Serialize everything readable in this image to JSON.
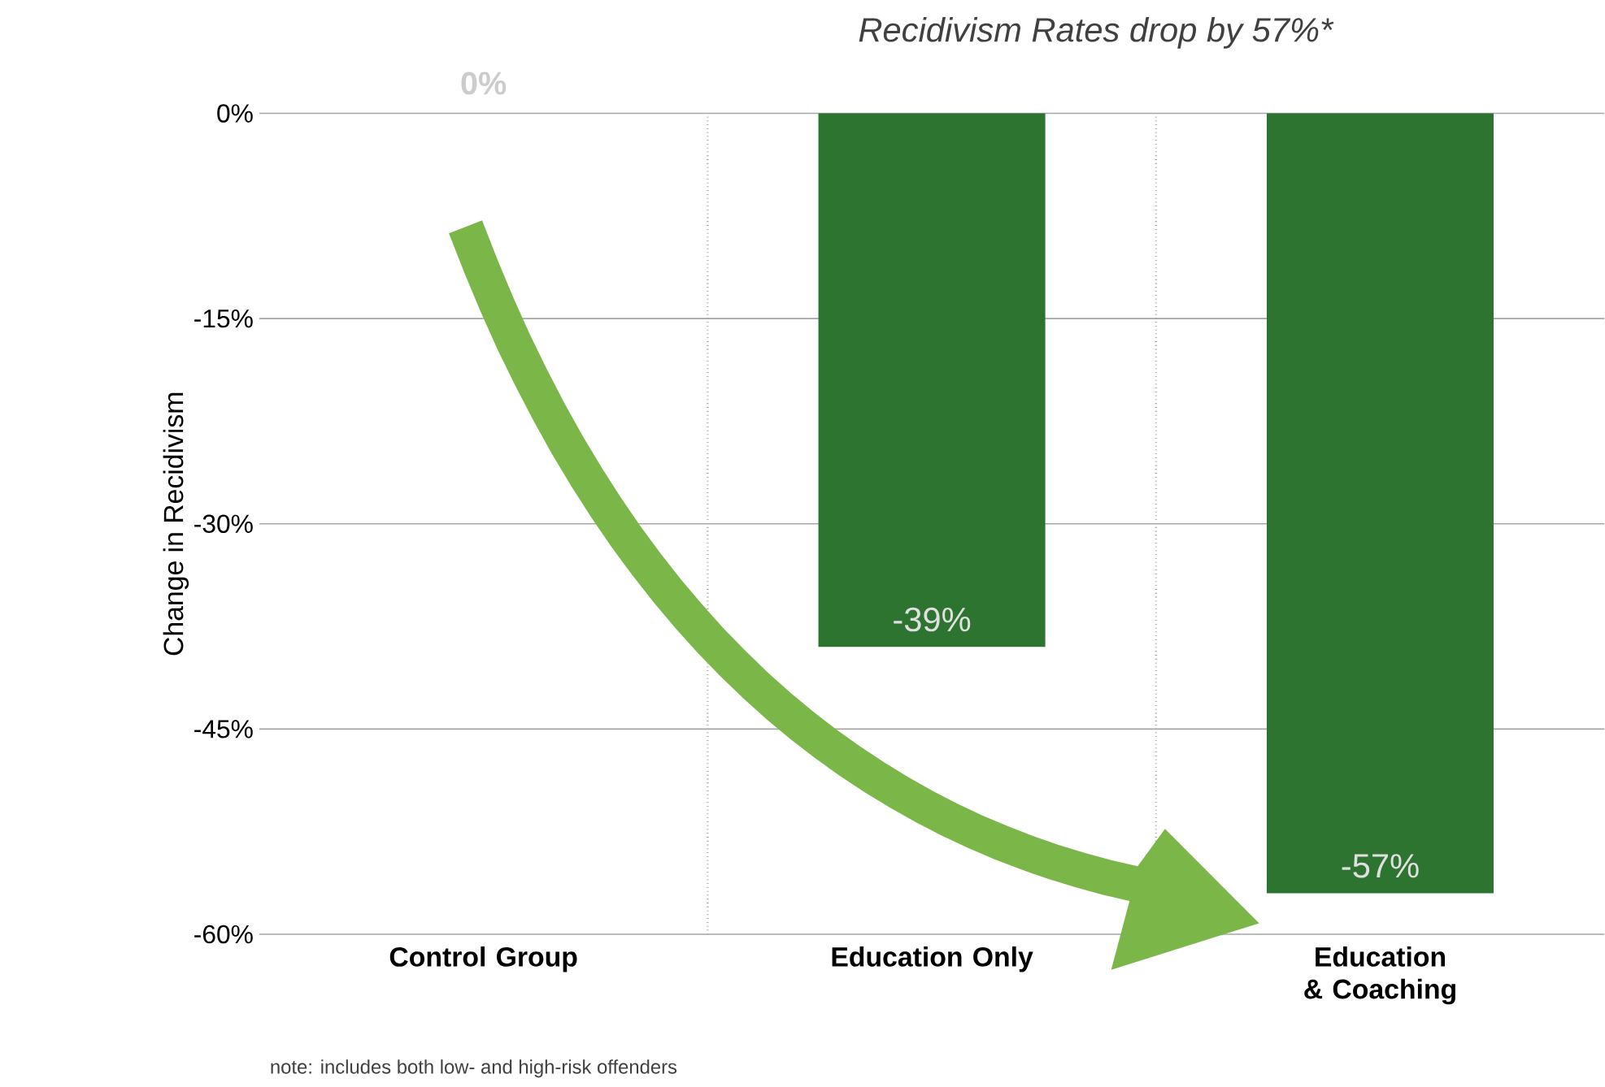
{
  "chart_data": {
    "type": "bar",
    "title": "Recidivism Rates drop by 57%*",
    "ylabel": "Change in Recidivism",
    "categories": [
      "Control Group",
      "Education Only",
      "Education & Coaching"
    ],
    "values": [
      0,
      -39,
      -57
    ],
    "color": "#2e7431",
    "value_labels": [
      "0%",
      "-39%",
      "-57%"
    ],
    "ylim": [
      -60,
      0
    ],
    "yticks": [
      {
        "value": 0,
        "label": "0%"
      },
      {
        "value": -15,
        "label": "-15%"
      },
      {
        "value": -30,
        "label": "-30%"
      },
      {
        "value": -45,
        "label": "-45%"
      },
      {
        "value": -60,
        "label": "-60%"
      }
    ],
    "grid": true,
    "annotations": [
      "note: includes both low- and high-risk offenders"
    ]
  }
}
